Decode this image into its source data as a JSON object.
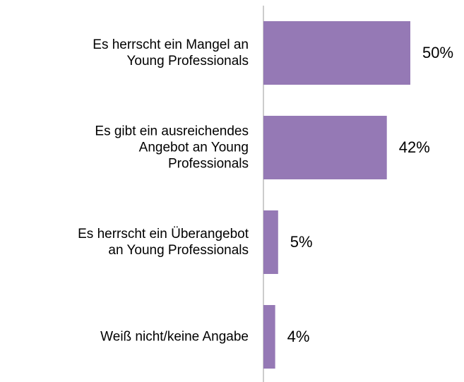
{
  "chart_data": {
    "type": "bar",
    "orientation": "horizontal",
    "categories": [
      "Es herrscht ein Mangel an\nYoung Professionals",
      "Es gibt ein ausreichendes\nAngebot an Young\nProfessionals",
      "Es herrscht ein Überangebot\nan Young Professionals",
      "Weiß nicht/keine Angabe"
    ],
    "values": [
      50,
      42,
      5,
      4
    ],
    "value_labels": [
      "50%",
      "42%",
      "5%",
      "4%"
    ],
    "color": "#9579b5"
  }
}
